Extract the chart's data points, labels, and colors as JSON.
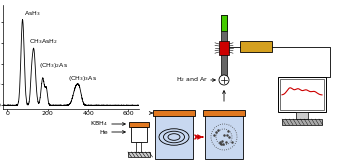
{
  "colors": {
    "orange_bar": "#E07820",
    "green_lamp": "#44CC00",
    "red_flame": "#CC0000",
    "dark_gray": "#666666",
    "gold_filter": "#D4A020",
    "background": "#FFFFFF",
    "light_blue": "#C8D8F0",
    "hatch_gray": "#999999",
    "red_dashed": "#EE0000",
    "coil_color": "#333333",
    "screen_bg": "#FFFFFF",
    "monitor_gray": "#AAAAAA",
    "base_hatch": "#BBBBBB"
  },
  "labels": {
    "KBH4": "KBH4",
    "He": "He",
    "H2_Ar": "H2 and Ar"
  },
  "chromatogram": {
    "peaks": [
      {
        "mu": 75,
        "sigma": 8,
        "amp": 4100
      },
      {
        "mu": 130,
        "sigma": 9,
        "amp": 2700
      },
      {
        "mu": 118,
        "sigma": 5,
        "amp": 500
      },
      {
        "mu": 175,
        "sigma": 8,
        "amp": 1300
      },
      {
        "mu": 193,
        "sigma": 6,
        "amp": 750
      },
      {
        "mu": 340,
        "sigma": 14,
        "amp": 850
      },
      {
        "mu": 358,
        "sigma": 10,
        "amp": 500
      }
    ]
  }
}
